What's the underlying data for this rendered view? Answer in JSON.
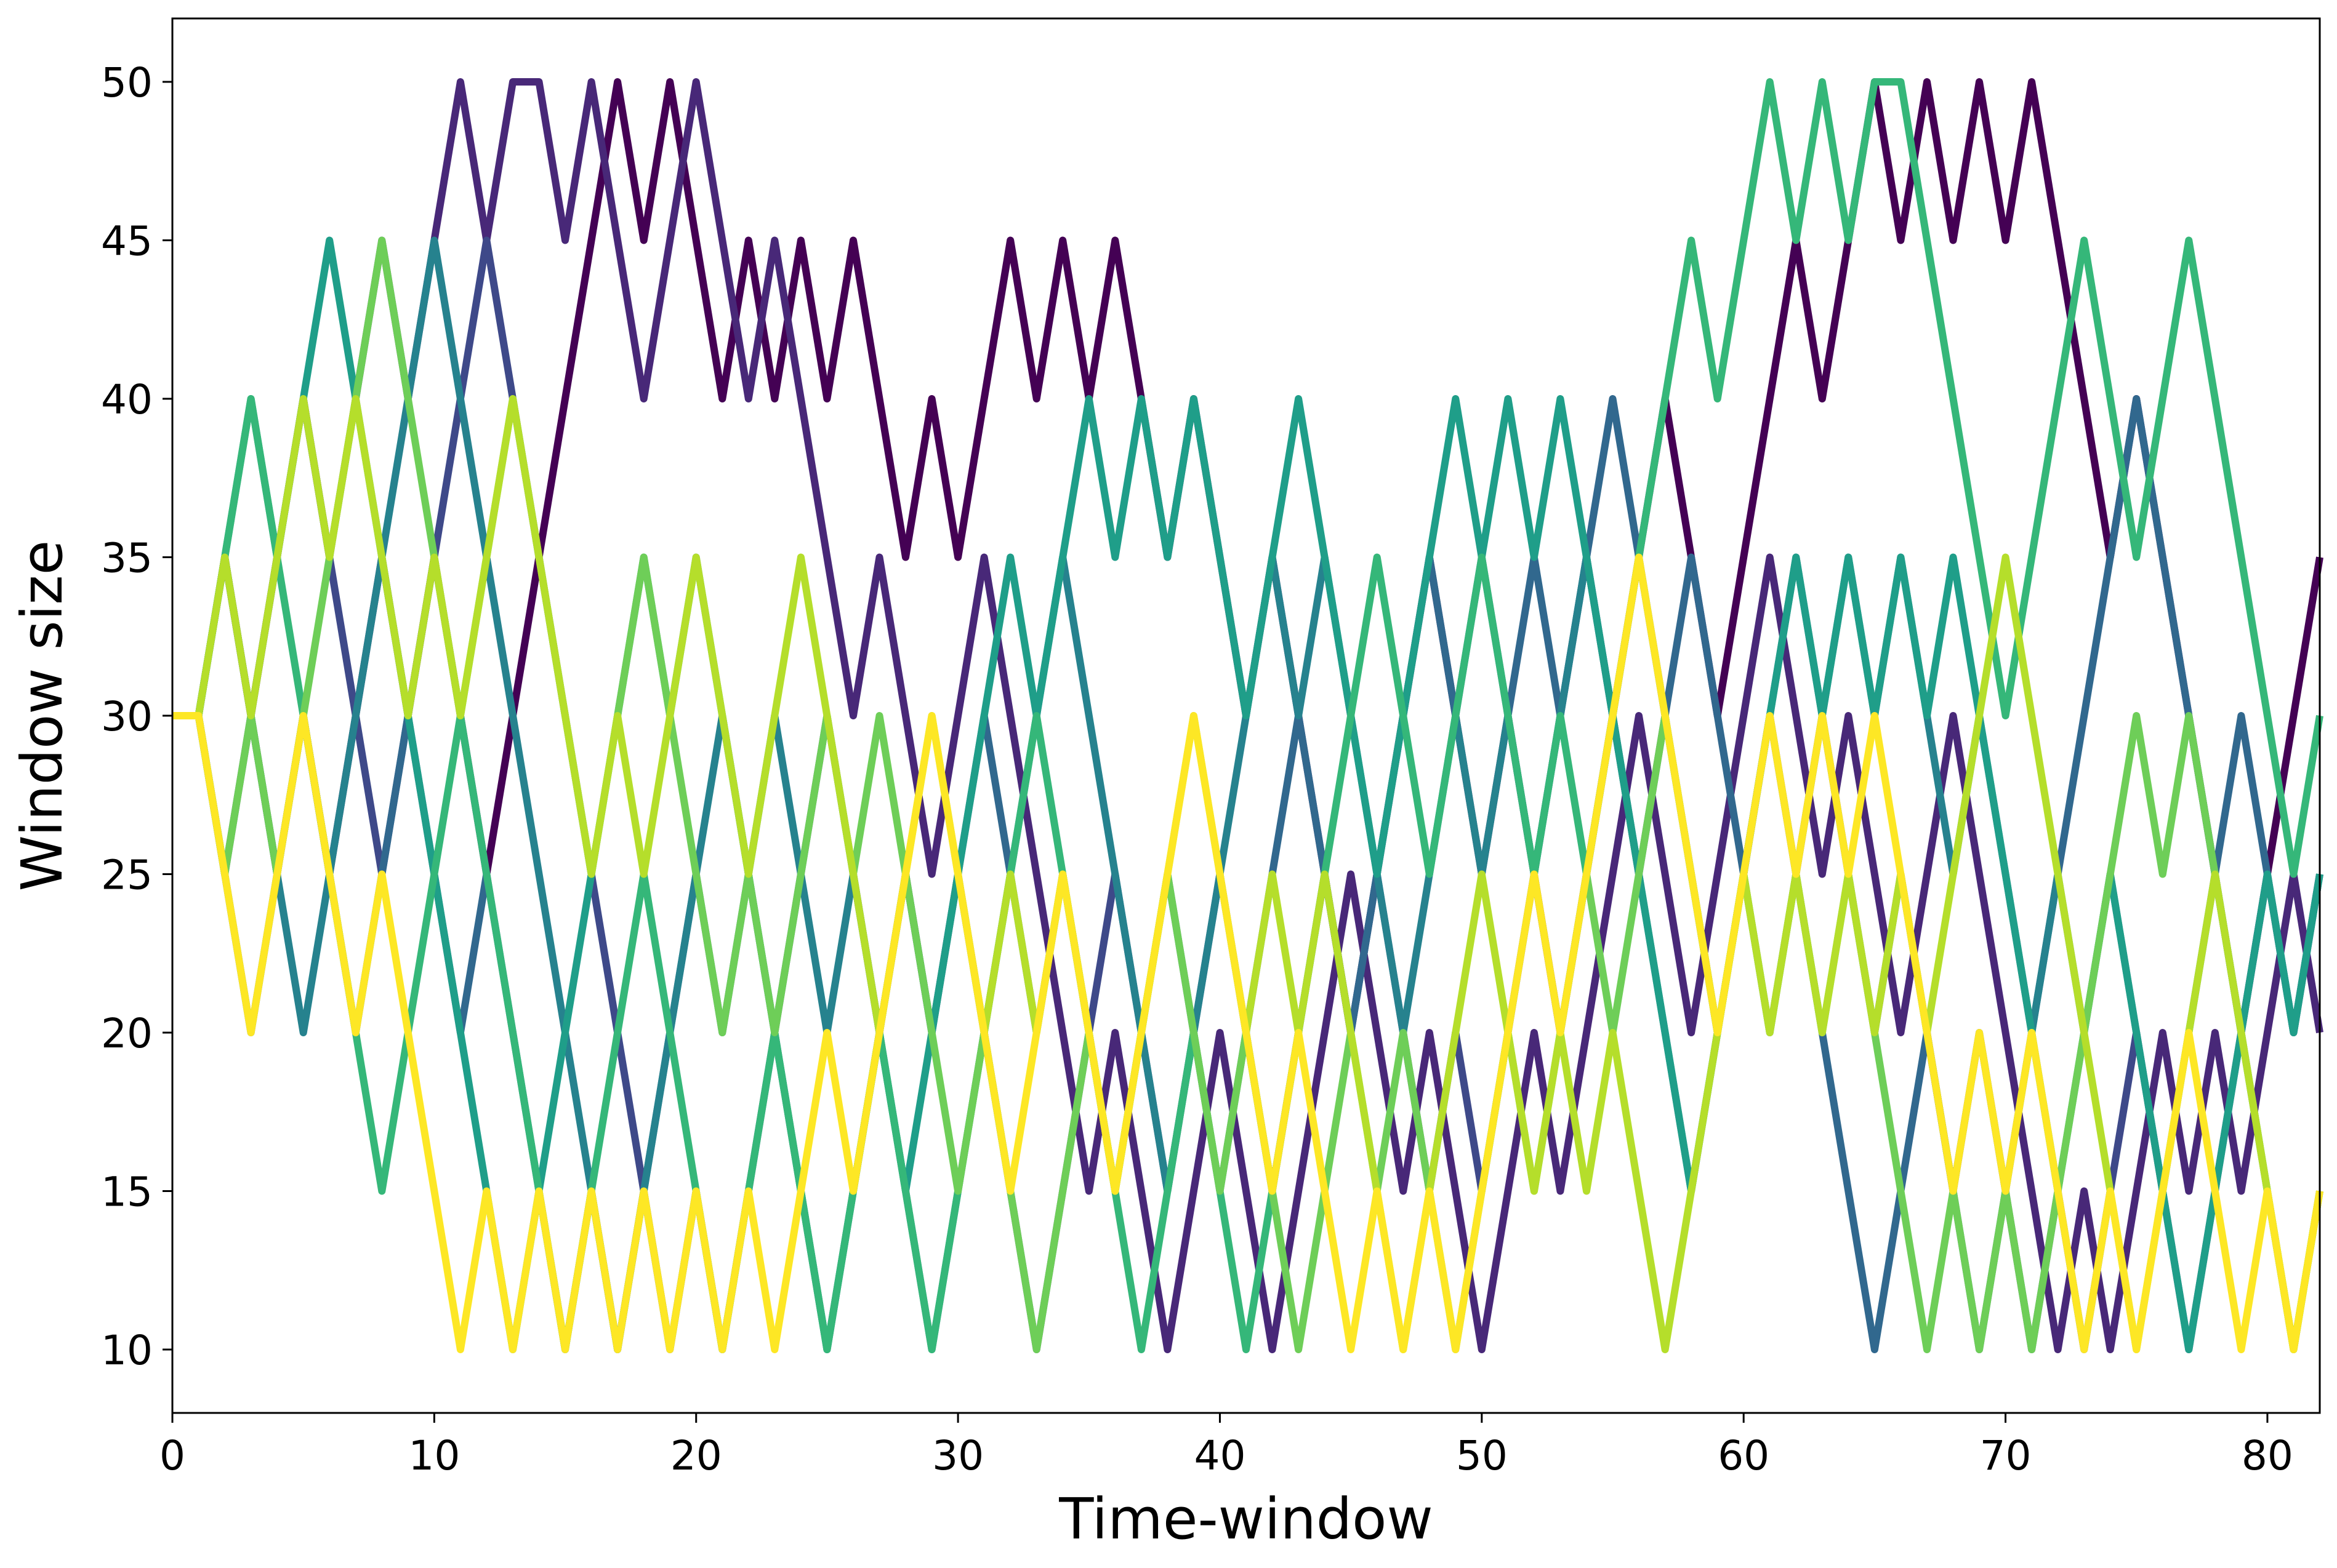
{
  "chart_data": {
    "type": "line",
    "title": "",
    "xlabel": "Time-window",
    "ylabel": "Window size",
    "xlim": [
      0,
      82
    ],
    "ylim": [
      8,
      52
    ],
    "xticks": [
      0,
      10,
      20,
      30,
      40,
      50,
      60,
      70,
      80
    ],
    "xtick_labels": [
      "0",
      "10",
      "20",
      "30",
      "40",
      "50",
      "60",
      "70",
      "80"
    ],
    "yticks": [
      10,
      15,
      20,
      25,
      30,
      35,
      40,
      45,
      50
    ],
    "ytick_labels": [
      "10",
      "15",
      "20",
      "25",
      "30",
      "35",
      "40",
      "45",
      "50"
    ],
    "grid": false,
    "legend": "none",
    "x": [
      0,
      1,
      2,
      3,
      4,
      5,
      6,
      7,
      8,
      9,
      10,
      11,
      12,
      13,
      14,
      15,
      16,
      17,
      18,
      19,
      20,
      21,
      22,
      23,
      24,
      25,
      26,
      27,
      28,
      29,
      30,
      31,
      32,
      33,
      34,
      35,
      36,
      37,
      38,
      39,
      40,
      41,
      42,
      43,
      44,
      45,
      46,
      47,
      48,
      49,
      50,
      51,
      52,
      53,
      54,
      55,
      56,
      57,
      58,
      59,
      60,
      61,
      62,
      63,
      64,
      65,
      66,
      67,
      68,
      69,
      70,
      71,
      72,
      73,
      74,
      75,
      76,
      77,
      78,
      79,
      80,
      81,
      82
    ],
    "series": [
      {
        "color": "#440154",
        "values": [
          30,
          30,
          35,
          30,
          25,
          30,
          25,
          30,
          35,
          30,
          35,
          30,
          25,
          30,
          35,
          40,
          45,
          50,
          45,
          50,
          45,
          40,
          45,
          40,
          45,
          40,
          45,
          40,
          35,
          40,
          35,
          40,
          45,
          40,
          45,
          40,
          45,
          40,
          35,
          40,
          35,
          30,
          35,
          30,
          25,
          20,
          25,
          30,
          35,
          30,
          25,
          30,
          25,
          20,
          25,
          30,
          35,
          40,
          35,
          30,
          35,
          40,
          45,
          40,
          45,
          50,
          45,
          50,
          45,
          50,
          45,
          50,
          45,
          40,
          35,
          40,
          35,
          30,
          25,
          20,
          25,
          30,
          35
        ]
      },
      {
        "color": "#482878",
        "values": [
          30,
          30,
          35,
          30,
          35,
          40,
          35,
          40,
          45,
          40,
          45,
          50,
          45,
          50,
          50,
          45,
          50,
          45,
          40,
          45,
          50,
          45,
          40,
          45,
          40,
          35,
          30,
          35,
          30,
          25,
          30,
          35,
          30,
          25,
          20,
          15,
          20,
          15,
          10,
          15,
          20,
          15,
          10,
          15,
          20,
          25,
          20,
          15,
          20,
          15,
          10,
          15,
          20,
          15,
          20,
          25,
          30,
          25,
          20,
          25,
          30,
          35,
          30,
          25,
          30,
          25,
          20,
          25,
          30,
          25,
          20,
          15,
          10,
          15,
          10,
          15,
          20,
          15,
          20,
          15,
          20,
          25,
          20
        ]
      },
      {
        "color": "#3e4989",
        "values": [
          30,
          30,
          25,
          30,
          35,
          40,
          35,
          30,
          25,
          30,
          35,
          40,
          45,
          40,
          35,
          30,
          25,
          20,
          15,
          10,
          15,
          10,
          15,
          20,
          25,
          30,
          25,
          20,
          25,
          20,
          25,
          20,
          15,
          10,
          15,
          20,
          25,
          20,
          15,
          20,
          25,
          20,
          15,
          20,
          25,
          20,
          25,
          20,
          15,
          20,
          15,
          20,
          25,
          30,
          35,
          30,
          25,
          30,
          25,
          20,
          25,
          30,
          25,
          30,
          25,
          20,
          25,
          20,
          15,
          20,
          15,
          10,
          15,
          10,
          15,
          20,
          15,
          10,
          15,
          20,
          25,
          20,
          25
        ]
      },
      {
        "color": "#31688e",
        "values": [
          30,
          30,
          25,
          20,
          25,
          30,
          25,
          20,
          25,
          30,
          25,
          20,
          25,
          20,
          15,
          10,
          15,
          10,
          15,
          20,
          25,
          20,
          25,
          20,
          15,
          10,
          15,
          20,
          25,
          20,
          25,
          30,
          25,
          20,
          25,
          20,
          15,
          20,
          25,
          20,
          15,
          20,
          25,
          30,
          25,
          20,
          25,
          30,
          35,
          30,
          35,
          30,
          35,
          30,
          35,
          40,
          35,
          30,
          35,
          30,
          25,
          20,
          25,
          20,
          15,
          10,
          15,
          20,
          15,
          10,
          15,
          20,
          25,
          30,
          35,
          40,
          35,
          30,
          25,
          30,
          25,
          20,
          25
        ]
      },
      {
        "color": "#26828e",
        "values": [
          30,
          30,
          35,
          30,
          25,
          20,
          25,
          30,
          35,
          40,
          45,
          40,
          35,
          30,
          25,
          20,
          15,
          10,
          15,
          20,
          25,
          30,
          25,
          30,
          25,
          20,
          25,
          20,
          15,
          10,
          15,
          20,
          25,
          30,
          35,
          30,
          25,
          20,
          15,
          20,
          25,
          30,
          35,
          30,
          35,
          30,
          25,
          20,
          25,
          30,
          25,
          30,
          25,
          30,
          35,
          30,
          25,
          20,
          15,
          20,
          25,
          30,
          35,
          30,
          35,
          30,
          35,
          30,
          25,
          30,
          25,
          20,
          25,
          20,
          25,
          20,
          15,
          20,
          25,
          20,
          15,
          10,
          15
        ]
      },
      {
        "color": "#1f9e89",
        "values": [
          30,
          30,
          35,
          40,
          35,
          40,
          45,
          40,
          35,
          30,
          25,
          20,
          15,
          10,
          15,
          20,
          25,
          30,
          35,
          30,
          35,
          30,
          25,
          20,
          15,
          10,
          15,
          20,
          15,
          20,
          25,
          30,
          35,
          30,
          35,
          40,
          35,
          40,
          35,
          40,
          35,
          30,
          35,
          40,
          35,
          30,
          25,
          30,
          35,
          40,
          35,
          40,
          35,
          40,
          35,
          30,
          25,
          20,
          15,
          20,
          25,
          30,
          35,
          30,
          35,
          30,
          35,
          30,
          35,
          30,
          25,
          20,
          15,
          20,
          25,
          20,
          15,
          10,
          15,
          20,
          25,
          20,
          25
        ]
      },
      {
        "color": "#35b779",
        "values": [
          30,
          30,
          35,
          40,
          35,
          30,
          25,
          20,
          15,
          20,
          25,
          30,
          25,
          20,
          15,
          10,
          15,
          20,
          25,
          20,
          15,
          10,
          15,
          20,
          15,
          10,
          15,
          20,
          15,
          10,
          15,
          20,
          25,
          30,
          25,
          20,
          15,
          10,
          15,
          20,
          15,
          10,
          15,
          20,
          25,
          30,
          35,
          30,
          25,
          30,
          35,
          30,
          25,
          30,
          25,
          30,
          35,
          40,
          45,
          40,
          45,
          50,
          45,
          50,
          45,
          50,
          50,
          45,
          40,
          35,
          30,
          35,
          40,
          45,
          40,
          35,
          40,
          45,
          40,
          35,
          30,
          25,
          30
        ]
      },
      {
        "color": "#6ece58",
        "values": [
          30,
          30,
          25,
          30,
          25,
          30,
          35,
          40,
          45,
          40,
          35,
          30,
          35,
          40,
          35,
          30,
          25,
          30,
          35,
          30,
          25,
          20,
          25,
          20,
          25,
          30,
          25,
          30,
          25,
          20,
          15,
          20,
          15,
          10,
          15,
          20,
          15,
          20,
          25,
          20,
          15,
          20,
          15,
          10,
          15,
          20,
          15,
          20,
          15,
          10,
          15,
          20,
          15,
          20,
          25,
          20,
          25,
          30,
          25,
          20,
          25,
          20,
          25,
          20,
          25,
          20,
          15,
          10,
          15,
          10,
          15,
          10,
          15,
          20,
          25,
          30,
          25,
          30,
          25,
          20,
          15,
          10,
          15
        ]
      },
      {
        "color": "#b5de2b",
        "values": [
          30,
          30,
          35,
          30,
          35,
          40,
          35,
          40,
          35,
          30,
          35,
          30,
          35,
          40,
          35,
          30,
          25,
          30,
          25,
          30,
          35,
          30,
          25,
          30,
          35,
          30,
          25,
          20,
          25,
          30,
          25,
          20,
          25,
          20,
          25,
          20,
          15,
          20,
          25,
          30,
          25,
          20,
          25,
          20,
          25,
          20,
          15,
          10,
          15,
          20,
          25,
          20,
          15,
          20,
          15,
          20,
          15,
          10,
          15,
          20,
          25,
          20,
          25,
          20,
          25,
          20,
          25,
          20,
          25,
          30,
          35,
          30,
          25,
          20,
          15,
          10,
          15,
          20,
          25,
          20,
          15,
          10,
          15
        ]
      },
      {
        "color": "#fde725",
        "values": [
          30,
          30,
          25,
          20,
          25,
          30,
          25,
          20,
          25,
          20,
          15,
          10,
          15,
          10,
          15,
          10,
          15,
          10,
          15,
          10,
          15,
          10,
          15,
          10,
          15,
          20,
          15,
          20,
          25,
          30,
          25,
          20,
          15,
          20,
          25,
          20,
          15,
          20,
          25,
          30,
          25,
          20,
          15,
          20,
          15,
          10,
          15,
          10,
          15,
          10,
          15,
          20,
          25,
          20,
          25,
          30,
          35,
          30,
          25,
          20,
          25,
          30,
          25,
          30,
          25,
          30,
          25,
          20,
          15,
          20,
          15,
          20,
          15,
          10,
          15,
          10,
          15,
          20,
          15,
          10,
          15,
          10,
          15
        ]
      }
    ]
  }
}
